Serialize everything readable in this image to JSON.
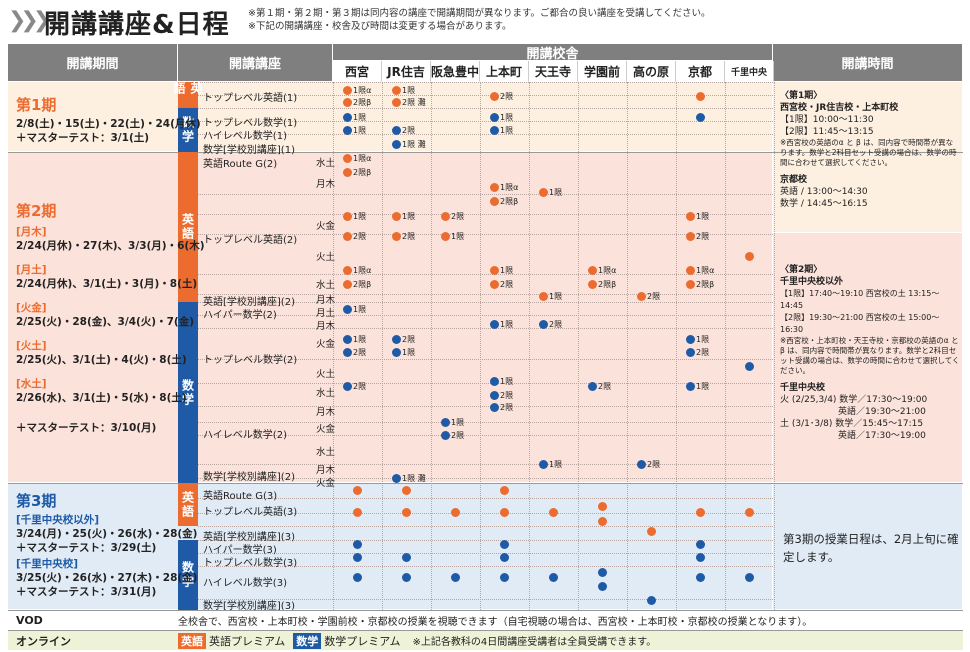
{
  "title": "開講講座&日程",
  "notes": [
    "※第１期・第２期・第３期は同内容の講座で開講期間が異なります。ご都合の良い講座を受講してください。",
    "※下記の開講講座・校舎及び時間は変更する場合があります。"
  ],
  "headers": {
    "period": "開講期間",
    "course": "開講講座",
    "schools_label": "開講校舎",
    "time": "開講時間"
  },
  "schools": [
    "西宮",
    "JR住吉",
    "阪急豊中",
    "上本町",
    "天王寺",
    "学園前",
    "高の原",
    "京都",
    "千里中央"
  ],
  "subjects": {
    "eng": "英語",
    "math": "数学"
  },
  "period1": {
    "title": "第1期",
    "dates": "2/8(土)・15(土)・22(土)・24(月休)",
    "test": "＋マスターテスト：3/1(土)",
    "courses": [
      "トップレベル英語(1)",
      "トップレベル数学(1)",
      "ハイレベル数学(1)",
      "数学[学校別講座](1)"
    ]
  },
  "period2": {
    "title": "第2期",
    "groups": [
      {
        "tag": "[月木]",
        "dates": "2/24(月休)・27(木)、3/3(月)・6(木)"
      },
      {
        "tag": "[月土]",
        "dates": "2/24(月休)、3/1(土)・3(月)・8(土)"
      },
      {
        "tag": "[火金]",
        "dates": "2/25(火)・28(金)、3/4(火)・7(金)"
      },
      {
        "tag": "[火土]",
        "dates": "2/25(火)、3/1(土)・4(火)・8(土)"
      },
      {
        "tag": "[水土]",
        "dates": "2/26(水)、3/1(土)・5(水)・8(土)"
      }
    ],
    "test": "＋マスターテスト：3/10(月)",
    "courses": [
      "英語Route G(2)",
      "トップレベル英語(2)",
      "英語[学校別講座](2)",
      "ハイパー数学(2)",
      "トップレベル数学(2)",
      "ハイレベル数学(2)",
      "数学[学校別講座](2)"
    ],
    "days": [
      "水土",
      "月木",
      "火金",
      "火土",
      "水土",
      "月木",
      "月土",
      "月木",
      "火金",
      "火土",
      "水土",
      "月木",
      "火金",
      "水土",
      "月木",
      "火金"
    ]
  },
  "period3": {
    "title": "第3期",
    "groups": [
      {
        "tag": "[千里中央校以外]",
        "dates": "3/24(月)・25(火)・26(水)・28(金)",
        "test": "＋マスターテスト：3/29(土)"
      },
      {
        "tag": "[千里中央校]",
        "dates": "3/25(火)・26(水)・27(木)・28(金)",
        "test": "＋マスターテスト：3/31(月)"
      }
    ],
    "courses": [
      "英語Route G(3)",
      "トップレベル英語(3)",
      "英語[学校別講座](3)",
      "ハイパー数学(3)",
      "トップレベル数学(3)",
      "ハイレベル数学(3)",
      "数学[学校別講座](3)"
    ],
    "note": "第3期の授業日程は、2月上旬に確定します。"
  },
  "times1": {
    "h": "〈第1期〉",
    "sub": "西宮校・JR住吉校・上本町校",
    "l1": "【1限】10:00〜11:30",
    "l2": "【2限】11:45〜13:15",
    "n": "※西宮校の英語のα と β は、同内容で時間帯が異なります。数学と2科目セット受講の場合は、数学の時間に合わせて選択してください。",
    "k": "京都校",
    "k1": "英語 / 13:00〜14:30",
    "k2": "数学 / 14:45〜16:15"
  },
  "times2": {
    "h": "〈第2期〉",
    "sub": "千里中央校以外",
    "l1": "【1限】17:40〜19:10 西宮校の土 13:15〜14:45",
    "l2": "【2限】19:30〜21:00 西宮校の土 15:00〜16:30",
    "n": "※西宮校・上本町校・天王寺校・京都校の英語のα と β は、同内容で時間帯が異なります。数学と2科目セット受講の場合は、数学の時間に合わせて選択してください。",
    "s": "千里中央校",
    "s1": "火 (2/25,3/4) 数学／17:30〜19:00",
    "s2": "英語／19:30〜21:00",
    "s3": "土 (3/1･3/8) 数学／15:45〜17:15",
    "s4": "英語／17:30〜19:00"
  },
  "vod": {
    "label": "VOD",
    "text": "全校舎で、西宮校・上本町校・学園前校・京都校の授業を視聴できます（自宅視聴の場合は、西宮校・上本町校・京都校の授業となります）。"
  },
  "online": {
    "label": "オンライン",
    "b1": "英語",
    "t1": "英語プレミアム",
    "b2": "数学",
    "t2": "数学プレミアム",
    "note": "※上記各教科の4日間講座受講者は全員受講できます。"
  },
  "marks": {
    "m1a": "1限α",
    "m2b": "2限β",
    "m1": "1限",
    "m2": "2限",
    "m2n": "2限 灘",
    "m1n": "1限 灘"
  },
  "colors": {
    "orange": "#ec6c30",
    "blue": "#1f5aa6",
    "p1": "#fdf0e1",
    "p2": "#fbe2da",
    "p3": "#e0ebf6"
  }
}
